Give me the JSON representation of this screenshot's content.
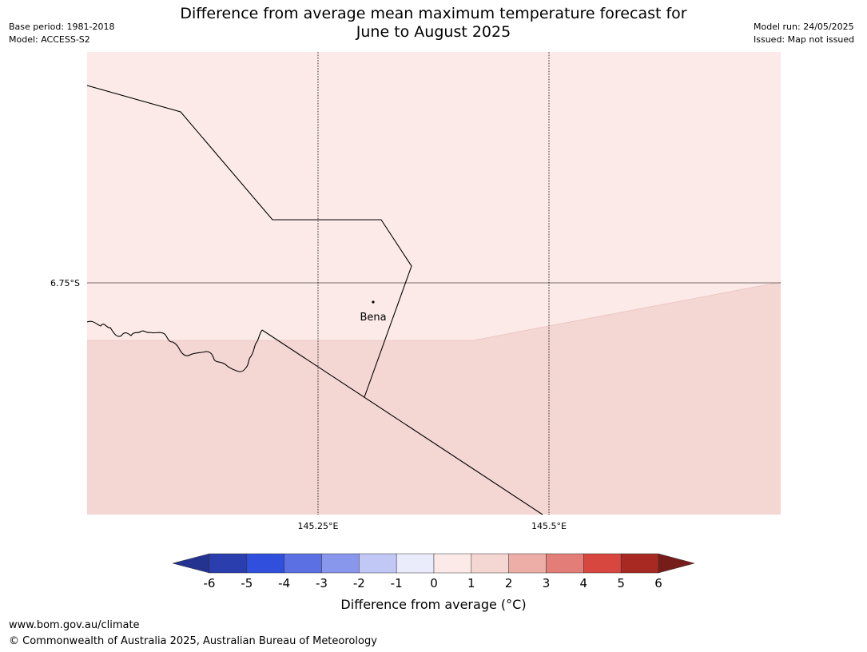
{
  "title": {
    "line1": "Difference from average mean maximum temperature forecast for",
    "line2": "June to August 2025"
  },
  "meta": {
    "base_period": "Base period: 1981-2018",
    "model": "Model: ACCESS-S2",
    "model_run": "Model run: 24/05/2025",
    "issued": "Issued: Map not issued"
  },
  "map": {
    "lat_label": "6.75°S",
    "lon_labels": [
      "145.25°E",
      "145.5°E"
    ],
    "place": "Bena",
    "region_colors": {
      "upper_region": "#fbeae8",
      "lower_region": "#f4d6d3"
    }
  },
  "colorbar": {
    "title": "Difference from average (°C)",
    "tick_labels": [
      "-6",
      "-5",
      "-4",
      "-3",
      "-2",
      "-1",
      "0",
      "1",
      "2",
      "3",
      "4",
      "5",
      "6"
    ],
    "colors": [
      "#24338f",
      "#2a3eae",
      "#2f4fdc",
      "#5a70e3",
      "#8896ec",
      "#c1c8f5",
      "#eaecfb",
      "#fbeae8",
      "#f4d6d3",
      "#edaea7",
      "#e27e77",
      "#d8473f",
      "#a82922",
      "#761d1a"
    ]
  },
  "footer": {
    "url": "www.bom.gov.au/climate",
    "copyright": "© Commonwealth of Australia 2025, Australian Bureau of Meteorology"
  }
}
